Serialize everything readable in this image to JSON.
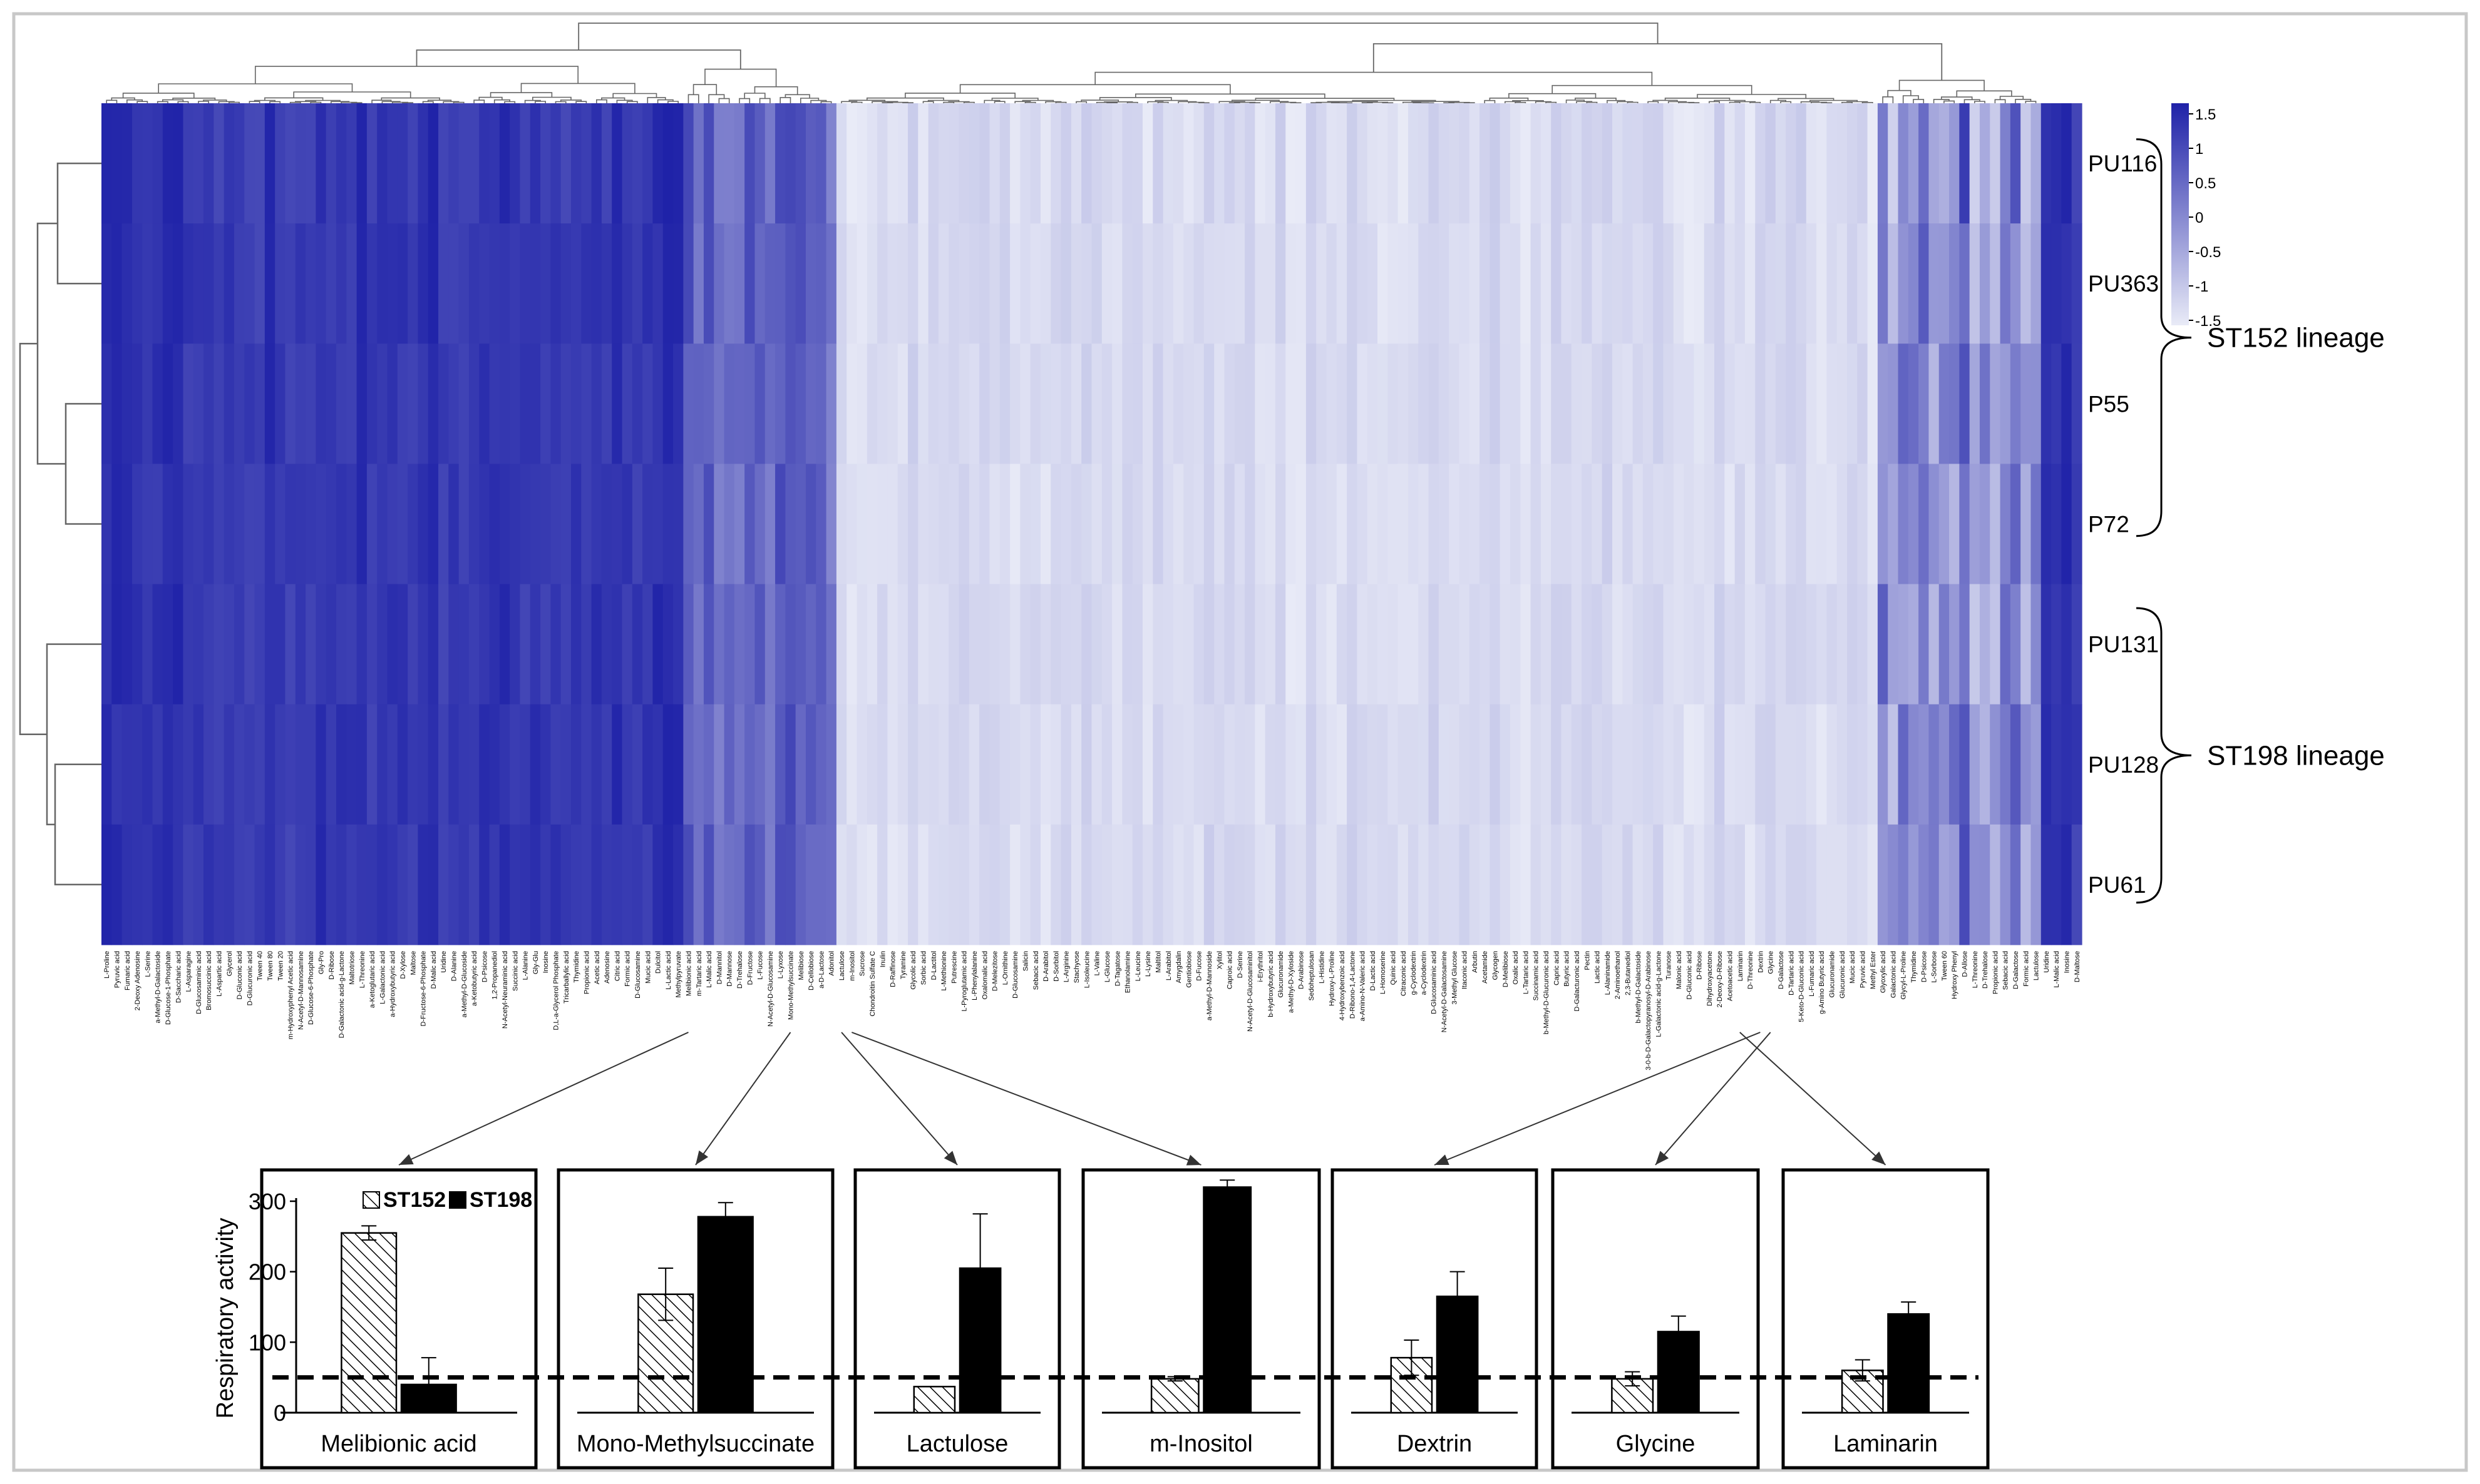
{
  "chart_data": [
    {
      "type": "heatmap",
      "rows": [
        "PU116",
        "PU363",
        "P55",
        "P72",
        "PU131",
        "PU128",
        "PU61"
      ],
      "groups": [
        {
          "label": "ST152 lineage",
          "rows": [
            "PU116",
            "PU363",
            "P55",
            "P72"
          ]
        },
        {
          "label": "ST198 lineage",
          "rows": [
            "PU131",
            "PU128",
            "PU61"
          ]
        }
      ],
      "color_key": {
        "min": -1.5,
        "max": 1.5,
        "low_color": "#e9ebf7",
        "high_color": "#1f22a8",
        "ticks": [
          "1.5",
          "1",
          "0.5",
          "0",
          "-0.5",
          "-1",
          "-1.5"
        ]
      },
      "columns": [
        "L-Proline",
        "Pyruvic acid",
        "Fumaric acid",
        "2-Deoxy Adenosine",
        "L-Serine",
        "a-Methyl-D-Galactoside",
        "D-Glucose-1-Phosphate",
        "D-Saccharic acid",
        "L-Asparagine",
        "D-Glucosaminic acid",
        "Bromosuccinic acid",
        "L-Aspartic acid",
        "Glycerol",
        "D-Gluconic acid",
        "D-Glucuronic acid",
        "Tween 40",
        "Tween 80",
        "Tween 20",
        "m-Hydroxyphenyl Acetic acid",
        "N-Acetyl-D-Mannosamine",
        "D-Glucose-6-Phosphate",
        "Gly-Pro",
        "D-Ribose",
        "D-Galactonic acid-g-Lactone",
        "Maltotriose",
        "L-Threonine",
        "a-Ketoglutaric acid",
        "L-Galactonic acid",
        "a-Hydroxybutyric acid",
        "D-Xylose",
        "Maltose",
        "D-Fructose-6-Phosphate",
        "D-Malic acid",
        "Uridine",
        "D-Alanine",
        "a-Methyl-D-Glucoside",
        "a-Ketobutyric acid",
        "D-Psicose",
        "1,2-Propanediol",
        "N-Acetyl-Neuraminic acid",
        "Succinic acid",
        "L-Alanine",
        "Gly-Glu",
        "Inosine",
        "D,L-a-Glycerol Phosphate",
        "Tricarballylic acid",
        "Thymidine",
        "Propionic acid",
        "Acetic acid",
        "Adenosine",
        "Citric acid",
        "Formic acid",
        "D-Glucosamine",
        "Mucic acid",
        "Dulcitol",
        "L-Lactic acid",
        "Methylpyruvate",
        "Melibionic acid",
        "m-Tartaric acid",
        "L-Malic acid",
        "D-Mannitol",
        "D-Mannose",
        "D-Trehalose",
        "D-Fructose",
        "L-Fucose",
        "N-Acetyl-D-Glucosamine",
        "L-Lyxose",
        "Mono-Methylsuccinate",
        "Melibiose",
        "D-Cellobiose",
        "a-D-Lactose",
        "Adonitol",
        "Lactulose",
        "m-Inositol",
        "Sucrose",
        "Chondroitin Sulfate C",
        "Inulin",
        "D-Raffinose",
        "Tyramine",
        "Glycolic acid",
        "Sorbic acid",
        "D-Lactitol",
        "L-Methionine",
        "Putrescine",
        "L-Pyroglutamic acid",
        "L-Phenylalanine",
        "Oxalomalic acid",
        "D-Melezitose",
        "L-Ornithine",
        "D-Glucosamine",
        "Salicin",
        "Sebacic acid",
        "D-Arabitol",
        "D-Sorbitol",
        "L-Arginine",
        "Stachyose",
        "L-Isoleucine",
        "L-Valine",
        "L-Glucose",
        "D-Tagatose",
        "Ethanolamine",
        "L-Leucine",
        "L-Lysine",
        "Maltitol",
        "L-Arabitol",
        "Amygdalin",
        "Gentiobiose",
        "D-Fucose",
        "a-Methyl-D-Mannoside",
        "Xylitol",
        "Caproic acid",
        "D-Serine",
        "N-Acetyl-D-Glucosaminitol",
        "i-Erythritol",
        "b-Hydroxybutyric acid",
        "Glucuronamide",
        "a-Methyl-D-Xyloside",
        "D-Arabinose",
        "Sedoheptulosan",
        "L-Histidine",
        "Hydroxy-L-Proline",
        "4-Hydroxybenzoic acid",
        "D-Ribono-1,4-Lactone",
        "a-Amino-N-Valeric acid",
        "D-Lactic acid",
        "L-Homoserine",
        "Quinic acid",
        "Citraconic acid",
        "g-Cyclodextrin",
        "a-Cyclodextrin",
        "D-Glucosaminic acid",
        "N-Acetyl-D-Galactosamine",
        "3-Methyl Glucose",
        "Itaconic acid",
        "Arbutin",
        "Acetamide",
        "Glycogen",
        "D-Melibiose",
        "Oxalic acid",
        "L-Tartaric acid",
        "Succinamic acid",
        "b-Methyl-D-Glucuronic acid",
        "Capric acid",
        "Butyric acid",
        "D-Galacturonic acid",
        "Pectin",
        "Lactic acid",
        "L-Alaninamide",
        "2-Aminoethanol",
        "2,3-Butanediol",
        "b-Methyl-D-Galactoside",
        "3-0-b-D-Galactopyranosyl-D-Arabinose",
        "L-Galactonic acid-g-Lactone",
        "Turanose",
        "Malonic acid",
        "D-Gluconic acid",
        "D-Ribose",
        "Dihydroxyacetone",
        "2-Deoxy-D-Ribose",
        "Acetoacetic acid",
        "Laminarin",
        "D-Threonine",
        "Dextrin",
        "Glycine",
        "D-Galactose",
        "D-Tartaric acid",
        "5-Keto-D-Gluconic acid",
        "L-Fumaric acid",
        "g-Amino Butyric acid",
        "Glucuronamide",
        "Glucuronic acid",
        "Mucic acid",
        "Pyruvic acid",
        "Methyl Ester",
        "Glyoxylic acid",
        "Galactonic acid",
        "Glycyl-L-Proline",
        "Thymidine",
        "D-Psicose",
        "L-Sorbose",
        "Tween 60",
        "Hydroxy Phenyl",
        "D-Allose",
        "L-Threonine",
        "D-Trehalose",
        "Propionic acid",
        "Sebacic acid",
        "D-Galactose",
        "Formic acid",
        "Lactulose",
        "Uridine",
        "L-Malic acid",
        "Inosine",
        "D-Maltose"
      ],
      "blocks": [
        {
          "columns": "1-57",
          "level": "high",
          "value_range": [
            0.9,
            1.5
          ]
        },
        {
          "columns": "58-72",
          "level": "intermediate",
          "value_range": [
            0.0,
            1.0
          ]
        },
        {
          "columns": "73-174",
          "level": "low",
          "value_range": [
            -1.5,
            -1.0
          ]
        },
        {
          "columns": "175-190",
          "level": "mixed",
          "value_range": [
            -1.2,
            1.2
          ]
        }
      ],
      "row_dendrogram": true,
      "column_dendrogram": true
    },
    {
      "type": "bar",
      "ylabel": "Respiratory activity",
      "ylim": [
        0,
        300
      ],
      "yticks": [
        0,
        100,
        200,
        300
      ],
      "threshold": 50,
      "series_names": [
        "ST152",
        "ST198"
      ],
      "panels": [
        {
          "category": "Melibionic acid",
          "ST152": 255,
          "ST152_err": 10,
          "ST198": 40,
          "ST198_err": 38
        },
        {
          "category": "Mono-Methylsuccinate",
          "ST152": 168,
          "ST152_err": 37,
          "ST198": 278,
          "ST198_err": 20
        },
        {
          "category": "Lactulose",
          "ST152": 37,
          "ST152_err": 0,
          "ST198": 205,
          "ST198_err": 77
        },
        {
          "category": "m-Inositol",
          "ST152": 48,
          "ST152_err": 3,
          "ST198": 320,
          "ST198_err": 10
        },
        {
          "category": "Dextrin",
          "ST152": 78,
          "ST152_err": 25,
          "ST198": 165,
          "ST198_err": 35
        },
        {
          "category": "Glycine",
          "ST152": 48,
          "ST152_err": 10,
          "ST198": 115,
          "ST198_err": 22
        },
        {
          "category": "Laminarin",
          "ST152": 60,
          "ST152_err": 15,
          "ST198": 140,
          "ST198_err": 17
        }
      ]
    }
  ]
}
